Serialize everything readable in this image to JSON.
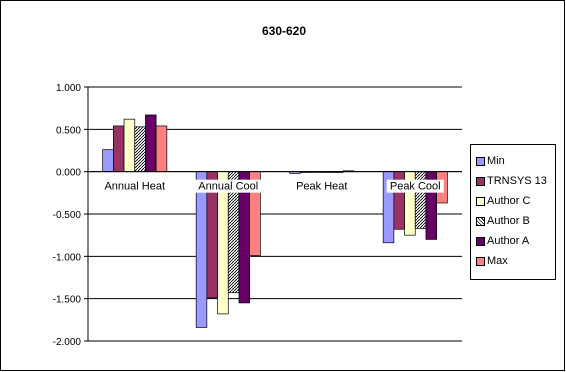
{
  "chart_data": {
    "type": "bar",
    "title": "630-620",
    "xlabel": "",
    "ylabel": "",
    "categories": [
      "Annual Heat",
      "Annual Cool",
      "Peak Heat",
      "Peak Cool"
    ],
    "ylim": [
      -2.0,
      1.0
    ],
    "yticks": [
      "1.000",
      "0.500",
      "0.000",
      "-0.500",
      "-1.000",
      "-1.500",
      "-2.000"
    ],
    "grid": true,
    "legend_position": "right",
    "series": [
      {
        "name": "Min",
        "color": "#9999ff",
        "values": [
          0.26,
          -1.84,
          -0.02,
          -0.84
        ]
      },
      {
        "name": "TRNSYS 13",
        "color": "#993366",
        "values": [
          0.54,
          -1.49,
          0.0,
          -0.68
        ]
      },
      {
        "name": "Author C",
        "color": "#ffffcc",
        "values": [
          0.62,
          -1.68,
          0.0,
          -0.75
        ]
      },
      {
        "name": "Author B",
        "color": "#cccccc",
        "pattern": "hatch",
        "values": [
          0.53,
          -1.43,
          0.0,
          -0.67
        ]
      },
      {
        "name": "Author A",
        "color": "#660066",
        "values": [
          0.67,
          -1.55,
          0.0,
          -0.8
        ]
      },
      {
        "name": "Max",
        "color": "#ff8080",
        "values": [
          0.54,
          -0.99,
          0.01,
          -0.37
        ]
      }
    ]
  }
}
